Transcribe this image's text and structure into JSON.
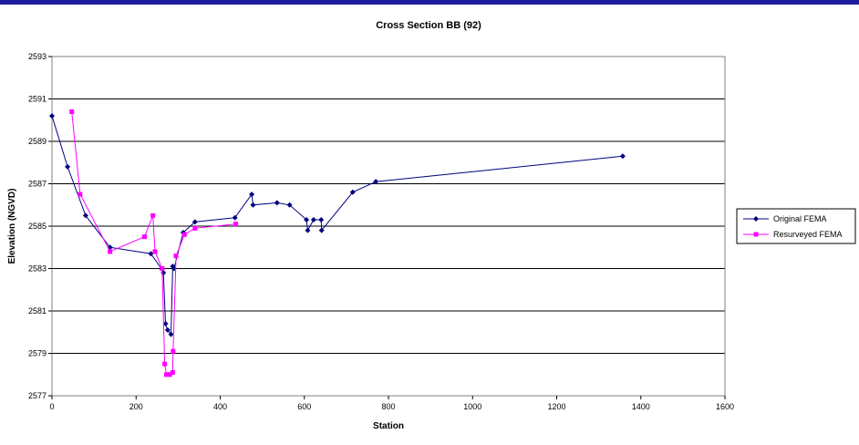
{
  "chart_data": {
    "type": "line",
    "title": "Cross Section BB (92)",
    "xlabel": "Station",
    "ylabel": "Elevation (NGVD)",
    "xlim": [
      0,
      1600
    ],
    "ylim": [
      2577,
      2593
    ],
    "x_ticks": [
      0,
      200,
      400,
      600,
      800,
      1000,
      1200,
      1400,
      1600
    ],
    "y_ticks": [
      2577,
      2579,
      2581,
      2583,
      2585,
      2587,
      2589,
      2591,
      2593
    ],
    "grid": "horizontal",
    "legend_position": "right",
    "series": [
      {
        "name": "Original FEMA",
        "color": "#000080",
        "marker": "diamond",
        "points": [
          [
            0,
            2590.2
          ],
          [
            37,
            2587.8
          ],
          [
            80,
            2585.5
          ],
          [
            138,
            2584.0
          ],
          [
            235,
            2583.7
          ],
          [
            260,
            2583.0
          ],
          [
            265,
            2582.8
          ],
          [
            270,
            2580.4
          ],
          [
            275,
            2580.1
          ],
          [
            283,
            2579.9
          ],
          [
            287,
            2583.1
          ],
          [
            290,
            2583.0
          ],
          [
            312,
            2584.7
          ],
          [
            340,
            2585.2
          ],
          [
            435,
            2585.4
          ],
          [
            475,
            2586.5
          ],
          [
            478,
            2586.0
          ],
          [
            535,
            2586.1
          ],
          [
            565,
            2586.0
          ],
          [
            605,
            2585.3
          ],
          [
            608,
            2584.8
          ],
          [
            622,
            2585.3
          ],
          [
            640,
            2585.3
          ],
          [
            641,
            2584.8
          ],
          [
            715,
            2586.6
          ],
          [
            770,
            2587.1
          ],
          [
            1357,
            2588.3
          ]
        ]
      },
      {
        "name": "Resurveyed FEMA",
        "color": "#ff00ff",
        "marker": "square",
        "points": [
          [
            47,
            2590.4
          ],
          [
            67,
            2586.5
          ],
          [
            138,
            2583.8
          ],
          [
            220,
            2584.5
          ],
          [
            240,
            2585.5
          ],
          [
            245,
            2583.8
          ],
          [
            262,
            2583.0
          ],
          [
            268,
            2578.5
          ],
          [
            272,
            2578.0
          ],
          [
            280,
            2578.0
          ],
          [
            287,
            2578.1
          ],
          [
            288,
            2579.1
          ],
          [
            295,
            2583.6
          ],
          [
            315,
            2584.6
          ],
          [
            340,
            2584.9
          ],
          [
            437,
            2585.1
          ]
        ]
      }
    ]
  }
}
